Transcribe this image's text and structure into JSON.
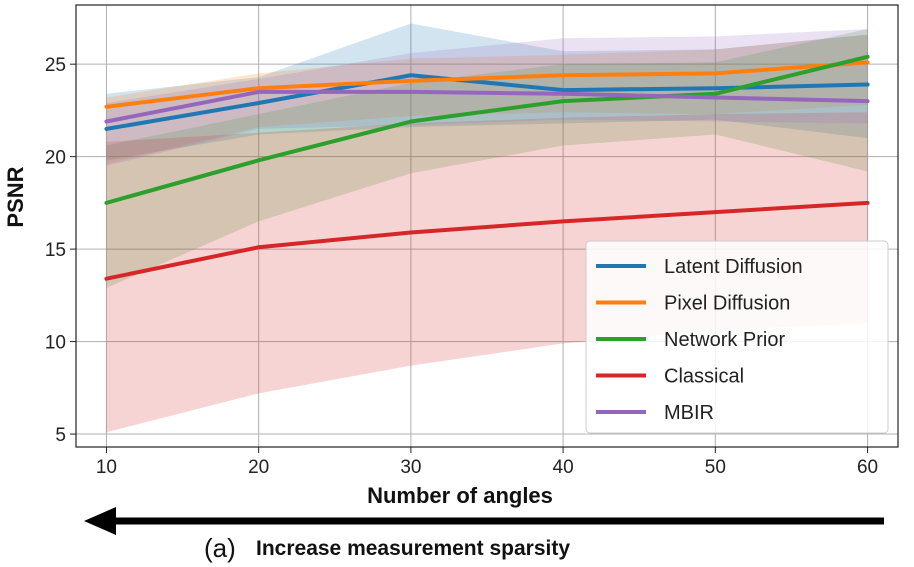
{
  "chart_data": {
    "type": "line",
    "title": "",
    "xlabel": "Number of angles",
    "ylabel": "PSNR",
    "x": [
      10,
      20,
      30,
      40,
      50,
      60
    ],
    "xlim": [
      8,
      62
    ],
    "ylim": [
      4.3,
      28.2
    ],
    "xticks": [
      10,
      20,
      30,
      40,
      50,
      60
    ],
    "yticks": [
      5,
      10,
      15,
      20,
      25
    ],
    "grid": true,
    "legend_position": "bottom-right",
    "series": [
      {
        "name": "Latent Diffusion",
        "color": "#1f77b4",
        "values": [
          21.5,
          22.9,
          24.4,
          23.6,
          23.7,
          23.9
        ],
        "lower": [
          19.8,
          21.2,
          21.6,
          21.8,
          22.0,
          21.0
        ],
        "upper": [
          23.4,
          24.3,
          27.2,
          25.7,
          25.8,
          26.6
        ]
      },
      {
        "name": "Pixel Diffusion",
        "color": "#ff7f0e",
        "values": [
          22.7,
          23.7,
          24.1,
          24.4,
          24.5,
          25.1
        ],
        "lower": [
          19.6,
          21.6,
          22.2,
          22.4,
          22.3,
          22.8
        ],
        "upper": [
          23.2,
          24.5,
          25.3,
          25.5,
          25.8,
          26.6
        ]
      },
      {
        "name": "Network Prior",
        "color": "#2ca02c",
        "values": [
          17.5,
          19.8,
          21.9,
          23.0,
          23.4,
          25.4
        ],
        "lower": [
          12.9,
          16.5,
          19.1,
          20.6,
          21.2,
          19.2
        ],
        "upper": [
          20.6,
          22.3,
          24.0,
          25.0,
          25.1,
          26.9
        ]
      },
      {
        "name": "Classical",
        "color": "#d62728",
        "values": [
          13.4,
          15.1,
          15.9,
          16.5,
          17.0,
          17.5
        ],
        "lower": [
          5.1,
          7.2,
          8.7,
          9.9,
          10.6,
          11.0
        ],
        "upper": [
          20.8,
          21.3,
          21.8,
          22.1,
          22.3,
          22.4
        ]
      },
      {
        "name": "MBIR",
        "color": "#9467bd",
        "values": [
          21.9,
          23.5,
          23.5,
          23.4,
          23.2,
          23.0
        ],
        "lower": [
          19.5,
          21.5,
          21.7,
          22.0,
          21.9,
          21.8
        ],
        "upper": [
          22.9,
          24.2,
          25.6,
          26.4,
          26.5,
          26.9
        ]
      }
    ]
  },
  "caption": {
    "label": "(a)",
    "text": "Increase measurement sparsity"
  }
}
